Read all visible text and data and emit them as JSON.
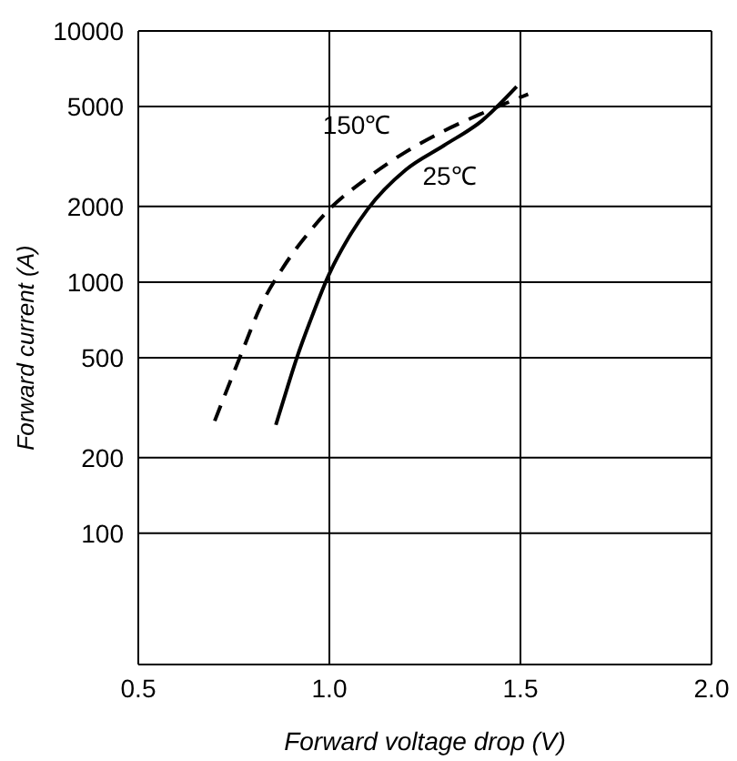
{
  "chart_data": {
    "type": "line",
    "xlabel": "Forward voltage drop (V)",
    "ylabel": "Forward current (A)",
    "series": [
      {
        "name": "150℃",
        "color": "#000000",
        "line_style": "dashed",
        "x": [
          0.7,
          0.74,
          0.77,
          0.82,
          0.88,
          0.95,
          1.0,
          1.1,
          1.2,
          1.3,
          1.4,
          1.52
        ],
        "values": [
          280,
          400,
          520,
          800,
          1150,
          1600,
          1950,
          2600,
          3300,
          4000,
          4700,
          5600
        ]
      },
      {
        "name": "25℃",
        "color": "#000000",
        "line_style": "solid",
        "x": [
          0.86,
          0.89,
          0.915,
          0.95,
          1.0,
          1.05,
          1.1,
          1.2,
          1.3,
          1.4,
          1.49
        ],
        "values": [
          270,
          380,
          500,
          700,
          1080,
          1500,
          1950,
          2800,
          3500,
          4400,
          6000
        ]
      }
    ],
    "xlim": [
      0.5,
      2.0
    ],
    "xticks": [
      {
        "value": 0.5,
        "label": "0.5"
      },
      {
        "value": 1.0,
        "label": "1.0"
      },
      {
        "value": 1.5,
        "label": "1.5"
      },
      {
        "value": 2.0,
        "label": "2.0"
      }
    ],
    "ylim": [
      30,
      10000
    ],
    "yticks": [
      100,
      200,
      500,
      1000,
      2000,
      5000,
      10000
    ],
    "log": "y",
    "grid": true,
    "marker": "none"
  }
}
